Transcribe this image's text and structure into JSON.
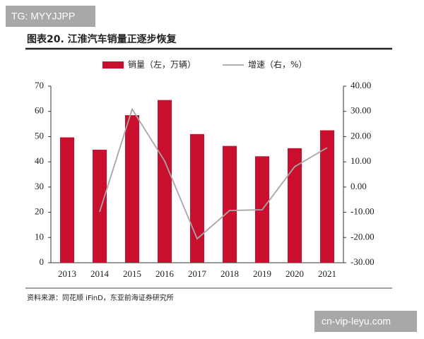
{
  "watermarks": {
    "top": "TG: MYYJJPP",
    "bottom": "cn-vip-leyu.com"
  },
  "chart_data": {
    "type": "bar",
    "title": "图表20. 江淮汽车销量正逐步恢复",
    "source": "资料来源：同花顺 iFinD，东亚前海证券研究所",
    "categories": [
      "2013",
      "2014",
      "2015",
      "2016",
      "2017",
      "2018",
      "2019",
      "2020",
      "2021"
    ],
    "series": [
      {
        "name": "销量（左，万辆）",
        "type": "bar",
        "color": "#c8102e",
        "values": [
          49.7,
          44.8,
          58.5,
          64.5,
          51.0,
          46.3,
          42.2,
          45.4,
          52.5
        ]
      },
      {
        "name": "增速（右，%）",
        "type": "line",
        "axis": "y2",
        "color": "#a6a6a6",
        "values": [
          null,
          -9.8,
          30.9,
          10.3,
          -20.5,
          -9.3,
          -9.0,
          8.1,
          15.6
        ]
      }
    ],
    "ylim": [
      0,
      70
    ],
    "yticks": [
      0,
      10,
      20,
      30,
      40,
      50,
      60,
      70
    ],
    "y2lim": [
      -30,
      40
    ],
    "y2ticks": [
      {
        "value": -30,
        "label": "-30.00"
      },
      {
        "value": -20,
        "label": "-20.00"
      },
      {
        "value": -10,
        "label": "-10.00"
      },
      {
        "value": 0,
        "label": "0.00"
      },
      {
        "value": 10,
        "label": "10.00"
      },
      {
        "value": 20,
        "label": "20.00"
      },
      {
        "value": 30,
        "label": "30.00"
      },
      {
        "value": 40,
        "label": "40.00"
      }
    ]
  }
}
